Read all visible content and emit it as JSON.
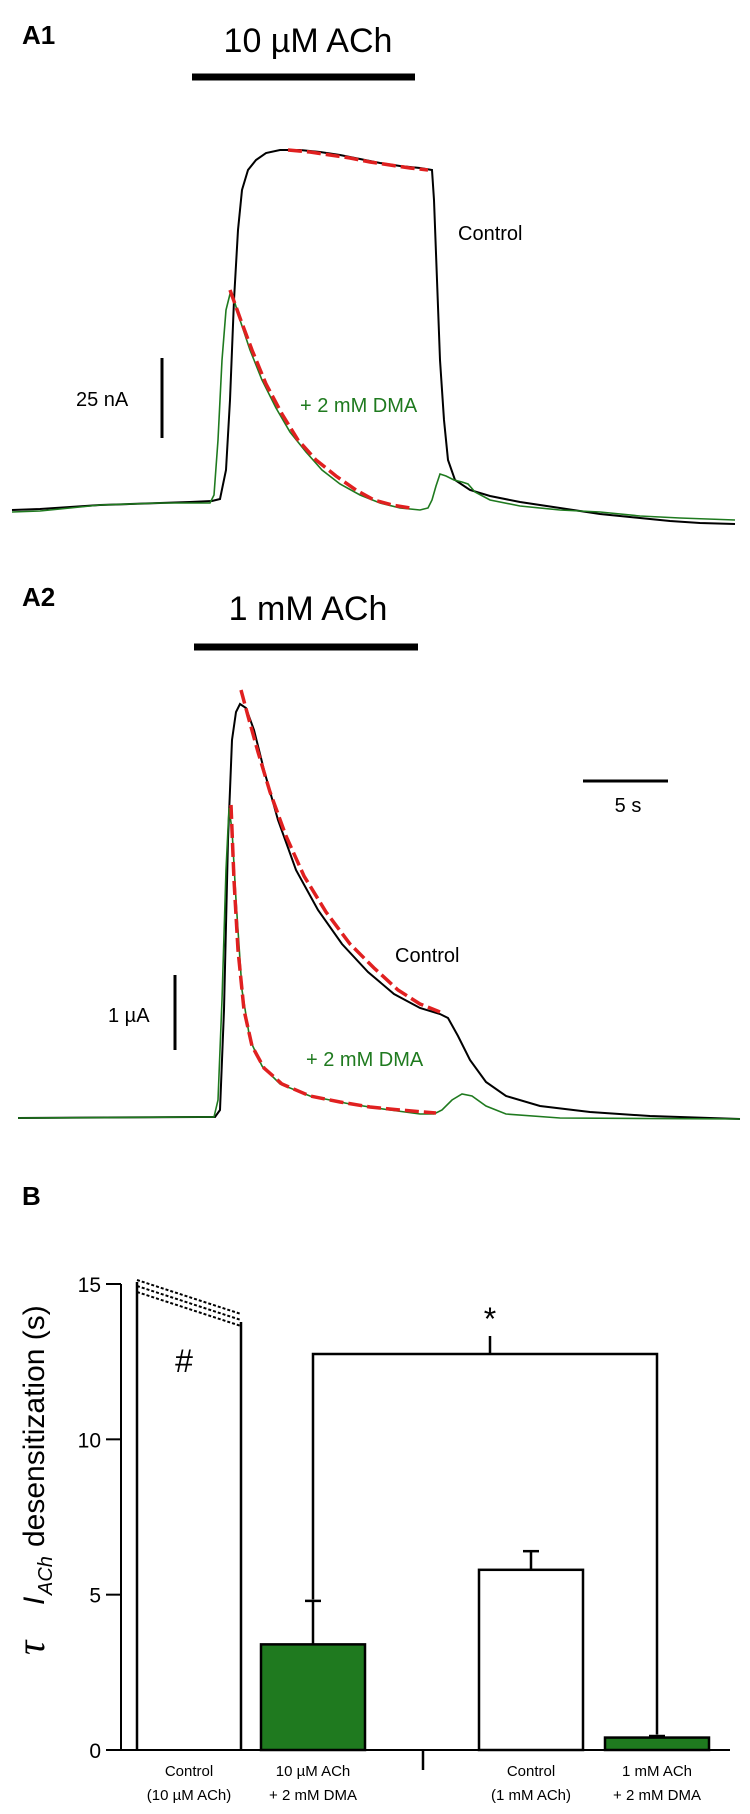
{
  "panels": {
    "a1": "A1",
    "a2": "A2",
    "b": "B"
  },
  "colors": {
    "control": "#000000",
    "dma": "#1f7a1f",
    "fit": "#e02020",
    "bar_dma": "#1f7a1f",
    "bar_control": "#ffffff"
  },
  "chart_data": [
    {
      "type": "line",
      "panel": "A1",
      "agonist_label": "10 µM ACh",
      "series": [
        {
          "name": "Control",
          "description_points": [
            [
              0,
              0
            ],
            [
              9,
              0
            ],
            [
              10,
              24
            ],
            [
              11,
              42
            ],
            [
              12,
              44
            ],
            [
              19,
              43
            ],
            [
              20,
              42
            ],
            [
              21,
              10
            ],
            [
              22,
              4
            ],
            [
              30,
              0
            ]
          ]
        },
        {
          "name": "+ 2 mM DMA",
          "description_points": [
            [
              0,
              0
            ],
            [
              9,
              0
            ],
            [
              10,
              30
            ],
            [
              11,
              27
            ],
            [
              13,
              18
            ],
            [
              15,
              11
            ],
            [
              17,
              6
            ],
            [
              19,
              2
            ],
            [
              20,
              5
            ],
            [
              21,
              4
            ],
            [
              22,
              2
            ],
            [
              30,
              0
            ]
          ]
        }
      ],
      "labels": {
        "control": "Control",
        "dma": "+ 2 mM DMA"
      },
      "scale_bar": {
        "current_label": "25 nA"
      }
    },
    {
      "type": "line",
      "panel": "A2",
      "agonist_label": "1 mM ACh",
      "series": [
        {
          "name": "Control",
          "description_points": [
            [
              0,
              0
            ],
            [
              9,
              0
            ],
            [
              10,
              3.6
            ],
            [
              11,
              3.2
            ],
            [
              13,
              2.1
            ],
            [
              15,
              1.5
            ],
            [
              17,
              1.1
            ],
            [
              19,
              0.95
            ],
            [
              20,
              0.7
            ],
            [
              21,
              0.25
            ],
            [
              24,
              0.1
            ],
            [
              30,
              0
            ]
          ]
        },
        {
          "name": "+ 2 mM DMA",
          "description_points": [
            [
              0,
              0
            ],
            [
              9,
              0
            ],
            [
              10,
              2.8
            ],
            [
              10.5,
              1.0
            ],
            [
              11,
              0.5
            ],
            [
              13,
              0.25
            ],
            [
              15,
              0.12
            ],
            [
              17,
              0.07
            ],
            [
              18,
              0.05
            ],
            [
              19,
              0.2
            ],
            [
              20,
              0.12
            ],
            [
              22,
              0.05
            ],
            [
              30,
              0
            ]
          ]
        }
      ],
      "labels": {
        "control": "Control",
        "dma": "+ 2 mM DMA"
      },
      "scale_bar": {
        "current_label": "1 µA",
        "time_label": "5 s"
      }
    },
    {
      "type": "bar",
      "panel": "B",
      "ylabel": "τ I_ACh desensitization (s)",
      "ylabel_tau": "τ",
      "ylabel_i": "I",
      "ylabel_sub": "ACh",
      "ylabel_rest": "desensitization (s)",
      "ylim": [
        0,
        15
      ],
      "yticks": [
        "0",
        "5",
        "10",
        "15"
      ],
      "ytick_values": [
        0,
        5,
        10,
        15
      ],
      "categories": [
        [
          "Control",
          "(10 µM ACh)"
        ],
        [
          "10 µM ACh",
          "+ 2 mM DMA"
        ],
        [
          "Control",
          "(1 mM ACh)"
        ],
        [
          "1 mM ACh",
          "+ 2 mM DMA"
        ]
      ],
      "values": [
        15,
        3.4,
        5.8,
        0.4
      ],
      "errors": [
        null,
        1.4,
        0.6,
        0.05
      ],
      "fills": [
        "white",
        "green",
        "white",
        "green"
      ],
      "annotations": {
        "hash": "#",
        "star": "*"
      }
    }
  ]
}
